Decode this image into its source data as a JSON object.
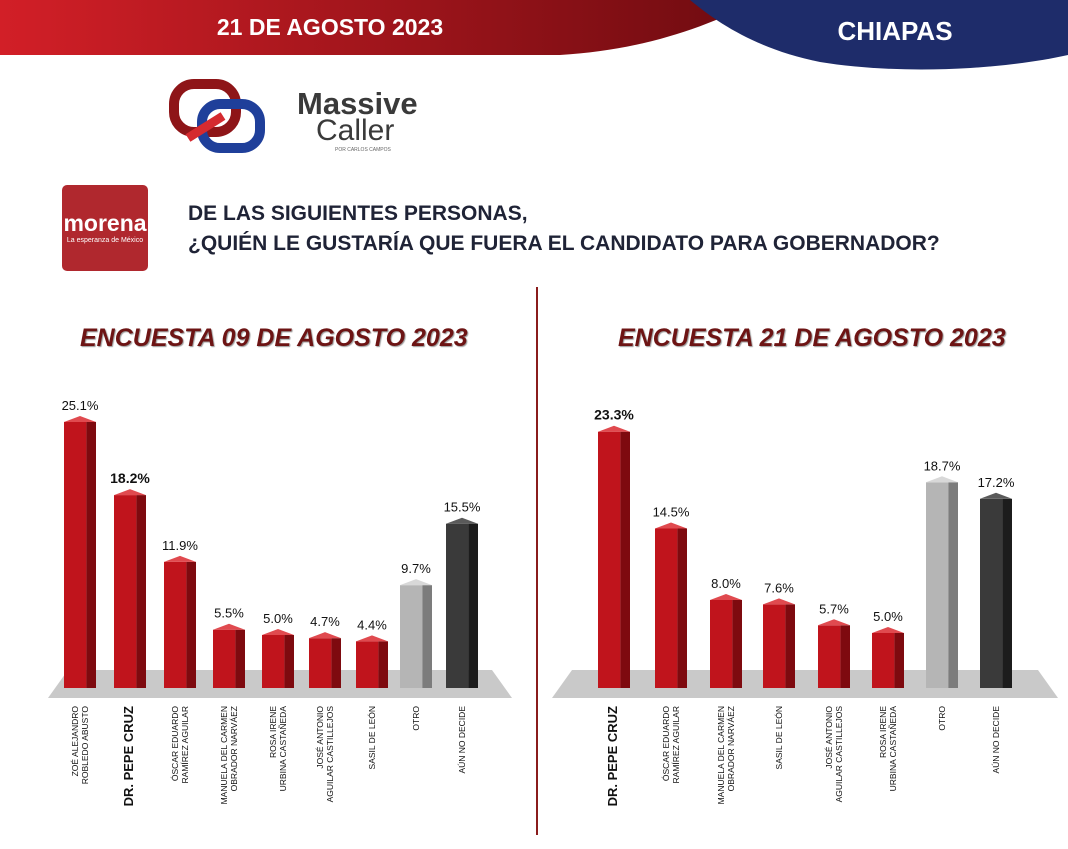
{
  "header": {
    "date": "21 DE AGOSTO 2023",
    "state": "CHIAPAS"
  },
  "brand": {
    "line1": "Massive",
    "line2": "Caller",
    "line3": "POR CARLOS CAMPOS"
  },
  "party": {
    "name": "morena",
    "tagline": "La esperanza de México"
  },
  "question": {
    "line1": "DE LAS SIGUIENTES PERSONAS,",
    "line2": "¿QUIÉN LE GUSTARÍA QUE FUERA EL CANDIDATO PARA GOBERNADOR?"
  },
  "colors": {
    "red": "#b5121b",
    "gray": "#a8a8a8",
    "dark": "#333333"
  },
  "chart_data": [
    {
      "type": "bar",
      "title": "ENCUESTA 09 DE AGOSTO 2023",
      "ylim": [
        0,
        27
      ],
      "categories": [
        "ZOÉ ALEJANDRO|ROBLEDO ABUSTO",
        "DR. PEPE CRUZ",
        "ÓSCAR EDUARDO|RAMÍREZ AGUILAR",
        "MANUELA DEL CARMEN|OBRADOR NARVÁEZ",
        "ROSA IRENE|URBINA CASTAÑEDA",
        "JOSÉ ANTONIO|AGUILAR CASTILLEJOS",
        "SASIL DE LEÓN",
        "OTRO",
        "AÚN NO DECIDE"
      ],
      "values": [
        25.1,
        18.2,
        11.9,
        5.5,
        5.0,
        4.7,
        4.4,
        9.7,
        15.5
      ],
      "labels": [
        "25.1%",
        "18.2%",
        "11.9%",
        "5.5%",
        "5.0%",
        "4.7%",
        "4.4%",
        "9.7%",
        "15.5%"
      ],
      "highlight": [
        1
      ],
      "kinds": [
        "red",
        "red",
        "red",
        "red",
        "red",
        "red",
        "red",
        "gray",
        "dark"
      ]
    },
    {
      "type": "bar",
      "title": "ENCUESTA 21 DE AGOSTO 2023",
      "ylim": [
        0,
        25
      ],
      "categories": [
        "DR. PEPE CRUZ",
        "ÓSCAR EDUARDO|RAMÍREZ AGUILAR",
        "MANUELA DEL CARMEN|OBRADOR NARVÁEZ",
        "SASIL DE LEÓN",
        "JOSÉ ANTONIO|AGUILAR CASTILLEJOS",
        "ROSA IRENE|URBINA CASTAÑEDA",
        "OTRO",
        "AÚN NO DECIDE"
      ],
      "values": [
        23.3,
        14.5,
        8.0,
        7.6,
        5.7,
        5.0,
        18.7,
        17.2
      ],
      "labels": [
        "23.3%",
        "14.5%",
        "8.0%",
        "7.6%",
        "5.7%",
        "5.0%",
        "18.7%",
        "17.2%"
      ],
      "highlight": [
        0
      ],
      "kinds": [
        "red",
        "red",
        "red",
        "red",
        "red",
        "red",
        "gray",
        "dark"
      ]
    }
  ]
}
